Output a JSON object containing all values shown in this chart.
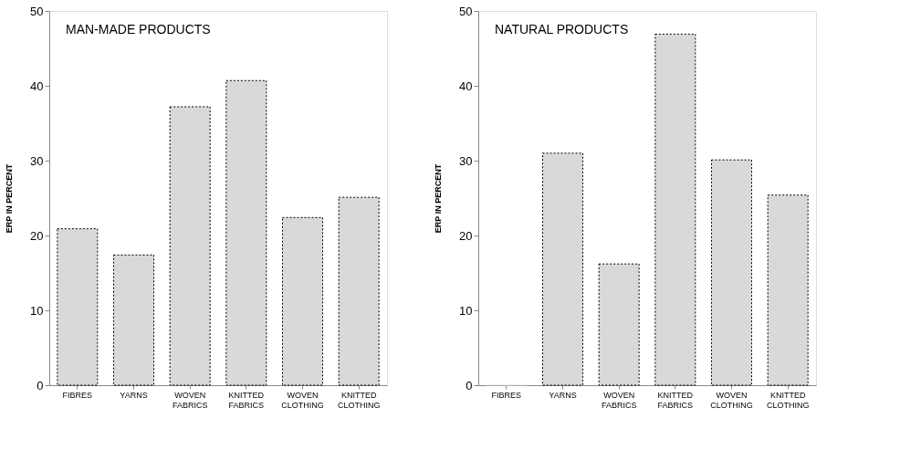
{
  "chart_data": [
    {
      "type": "bar",
      "title": "MAN-MADE PRODUCTS",
      "ylabel": "ERP IN PERCENT",
      "categories": [
        "FIBRES",
        "YARNS",
        "WOVEN FABRICS",
        "KNITTED FABRICS",
        "WOVEN CLOTHING",
        "KNITTED CLOTHING"
      ],
      "values": [
        20.9,
        17.4,
        37.2,
        40.7,
        22.4,
        25.1
      ],
      "color": "#d9d9d9",
      "ylim": [
        0,
        50
      ],
      "yticks": [
        0,
        10,
        20,
        30,
        40,
        50
      ],
      "grid": false
    },
    {
      "type": "bar",
      "title": "NATURAL PRODUCTS",
      "ylabel": "ERP IN PERCENT",
      "categories": [
        "FIBRES",
        "YARNS",
        "WOVEN FABRICS",
        "KNITTED FABRICS",
        "WOVEN CLOTHING",
        "KNITTED CLOTHING"
      ],
      "values": [
        0,
        31.0,
        16.2,
        46.9,
        30.1,
        25.4
      ],
      "color": "#d9d9d9",
      "ylim": [
        0,
        50
      ],
      "yticks": [
        0,
        10,
        20,
        30,
        40,
        50
      ],
      "grid": false
    }
  ]
}
